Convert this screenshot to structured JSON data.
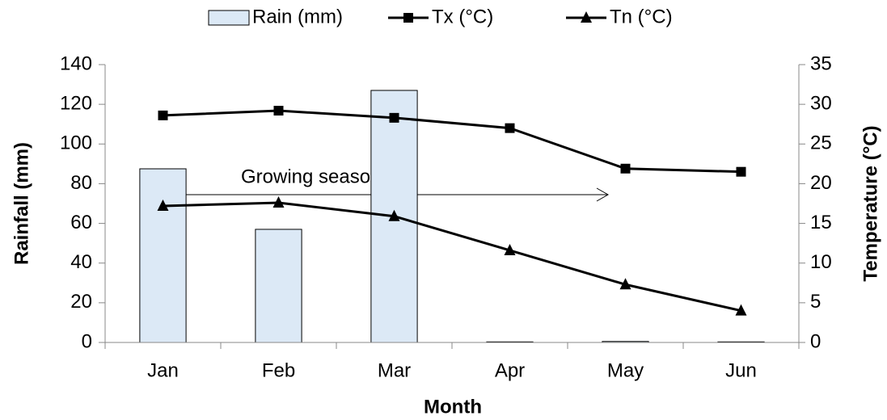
{
  "chart_data": {
    "type": "bar-line",
    "categories": [
      "Jan",
      "Feb",
      "Mar",
      "Apr",
      "May",
      "Jun"
    ],
    "series": [
      {
        "name": "Rain (mm)",
        "type": "bar",
        "color": "#dce9f6",
        "values": [
          87.5,
          57,
          127,
          0.3,
          0.5,
          0.3
        ]
      },
      {
        "name": "Tx (°C)",
        "type": "line",
        "marker": "square",
        "color": "#000000",
        "axis": "y2",
        "values": [
          28.6,
          29.2,
          28.3,
          27.0,
          21.9,
          21.5
        ]
      },
      {
        "name": "Tn (°C)",
        "type": "line",
        "marker": "triangle",
        "color": "#000000",
        "axis": "y2",
        "values": [
          17.2,
          17.6,
          15.9,
          11.6,
          7.3,
          4.0
        ]
      }
    ],
    "ylim": [
      0,
      140
    ],
    "yticks": [
      0,
      20,
      40,
      60,
      80,
      100,
      120,
      140
    ],
    "y2lim": [
      0,
      35
    ],
    "y2ticks": [
      0,
      5,
      10,
      15,
      20,
      25,
      30,
      35
    ],
    "ylabel": "Rainfall (mm)",
    "y2label": "Temperature (°C)",
    "xlabel": "Month",
    "annotation": "Growing season",
    "legend": "top"
  }
}
